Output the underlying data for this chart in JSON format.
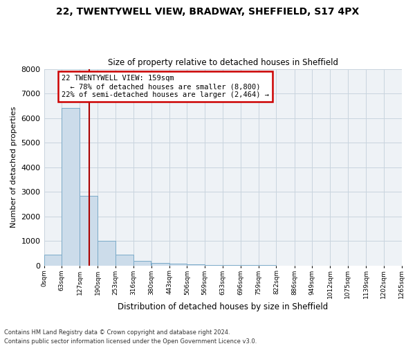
{
  "title_line1": "22, TWENTYWELL VIEW, BRADWAY, SHEFFIELD, S17 4PX",
  "title_line2": "Size of property relative to detached houses in Sheffield",
  "xlabel": "Distribution of detached houses by size in Sheffield",
  "ylabel": "Number of detached properties",
  "footer_line1": "Contains HM Land Registry data © Crown copyright and database right 2024.",
  "footer_line2": "Contains public sector information licensed under the Open Government Licence v3.0.",
  "annotation_line1": "22 TWENTYWELL VIEW: 159sqm",
  "annotation_line2": "← 78% of detached houses are smaller (8,800)",
  "annotation_line3": "22% of semi-detached houses are larger (2,464) →",
  "property_size": 159,
  "bar_color": "#ccdcea",
  "bar_edge_color": "#7aaac8",
  "vline_color": "#aa0000",
  "annotation_box_color": "#cc0000",
  "annotation_text_color": "#000000",
  "grid_color": "#c8d4de",
  "background_color": "#eef2f6",
  "ylim": [
    0,
    8000
  ],
  "yticks": [
    0,
    1000,
    2000,
    3000,
    4000,
    5000,
    6000,
    7000,
    8000
  ],
  "bins": [
    0,
    63,
    127,
    190,
    253,
    316,
    380,
    443,
    506,
    569,
    633,
    696,
    759,
    822,
    886,
    949,
    1012,
    1075,
    1139,
    1202,
    1265
  ],
  "bin_labels": [
    "0sqm",
    "63sqm",
    "127sqm",
    "190sqm",
    "253sqm",
    "316sqm",
    "380sqm",
    "443sqm",
    "506sqm",
    "569sqm",
    "633sqm",
    "696sqm",
    "759sqm",
    "822sqm",
    "886sqm",
    "949sqm",
    "1012sqm",
    "1075sqm",
    "1139sqm",
    "1202sqm",
    "1265sqm"
  ],
  "values": [
    450,
    6400,
    2850,
    1000,
    430,
    200,
    120,
    75,
    45,
    28,
    18,
    12,
    8,
    6,
    4,
    3,
    2,
    2,
    1,
    1
  ]
}
